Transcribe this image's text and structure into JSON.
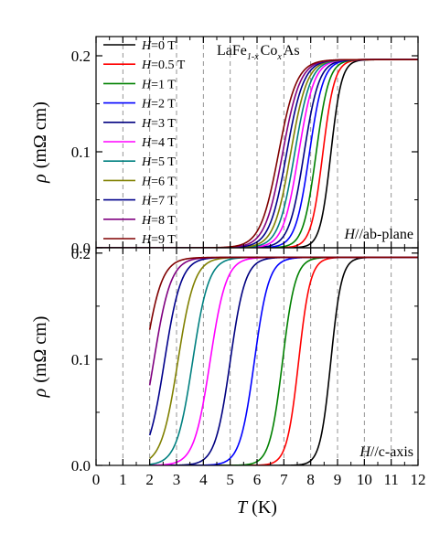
{
  "chart_data": [
    {
      "type": "line",
      "panel": "top",
      "compound": {
        "base": "LaFe",
        "sub1": "1-x",
        "mid": "Co",
        "sub2": "x",
        "tail": "As"
      },
      "annotation": {
        "italic": "H",
        "rest": "//ab-plane"
      },
      "ylabel": {
        "rho": "ρ",
        "unit": "(mΩ cm)"
      },
      "ylim": [
        0,
        0.22
      ],
      "yticks": [
        0.0,
        0.1,
        0.2
      ],
      "ytick_labels": [
        "0.0",
        "0.1",
        "0.2"
      ],
      "xlim": [
        0,
        12
      ],
      "grid": "vertical dashed lines at integer T",
      "rho_normal": 0.196,
      "legend": [
        {
          "italic": "H",
          "rest": "=0 T",
          "color": "#000000"
        },
        {
          "italic": "H",
          "rest": "=0.5 T",
          "color": "#ff0000"
        },
        {
          "italic": "H",
          "rest": "=1 T",
          "color": "#008000"
        },
        {
          "italic": "H",
          "rest": "=2 T",
          "color": "#0000ff"
        },
        {
          "italic": "H",
          "rest": "=3 T",
          "color": "#000080"
        },
        {
          "italic": "H",
          "rest": "=4 T",
          "color": "#ff00ff"
        },
        {
          "italic": "H",
          "rest": "=5 T",
          "color": "#008080"
        },
        {
          "italic": "H",
          "rest": "=6 T",
          "color": "#808000"
        },
        {
          "italic": "H",
          "rest": "=7 T",
          "color": "#00008b"
        },
        {
          "italic": "H",
          "rest": "=8 T",
          "color": "#800080"
        },
        {
          "italic": "H",
          "rest": "=9 T",
          "color": "#800000"
        }
      ],
      "legend_position": "top-left",
      "series": [
        {
          "field_T": 0,
          "Tc_mid": 8.75,
          "width": 0.2,
          "color": "#000000"
        },
        {
          "field_T": 0.5,
          "Tc_mid": 8.45,
          "width": 0.22,
          "color": "#ff0000"
        },
        {
          "field_T": 1,
          "Tc_mid": 8.2,
          "width": 0.24,
          "color": "#008000"
        },
        {
          "field_T": 2,
          "Tc_mid": 7.95,
          "width": 0.26,
          "color": "#0000ff"
        },
        {
          "field_T": 3,
          "Tc_mid": 7.75,
          "width": 0.28,
          "color": "#000080"
        },
        {
          "field_T": 4,
          "Tc_mid": 7.55,
          "width": 0.29,
          "color": "#ff00ff"
        },
        {
          "field_T": 5,
          "Tc_mid": 7.4,
          "width": 0.3,
          "color": "#008080"
        },
        {
          "field_T": 6,
          "Tc_mid": 7.25,
          "width": 0.31,
          "color": "#808000"
        },
        {
          "field_T": 7,
          "Tc_mid": 7.1,
          "width": 0.32,
          "color": "#00008b"
        },
        {
          "field_T": 8,
          "Tc_mid": 6.95,
          "width": 0.33,
          "color": "#800080"
        },
        {
          "field_T": 9,
          "Tc_mid": 6.8,
          "width": 0.34,
          "color": "#800000"
        }
      ]
    },
    {
      "type": "line",
      "panel": "bottom",
      "annotation": {
        "italic": "H",
        "rest": "//c-axis"
      },
      "ylabel": {
        "rho": "ρ",
        "unit": "(mΩ cm)"
      },
      "ylim": [
        0,
        0.205
      ],
      "yticks": [
        0.0,
        0.1,
        0.2
      ],
      "ytick_labels": [
        "0.0",
        "0.1",
        "0.2"
      ],
      "xlim": [
        0,
        12
      ],
      "xticks": [
        0,
        1,
        2,
        3,
        4,
        5,
        6,
        7,
        8,
        9,
        10,
        11,
        12
      ],
      "xtick_labels": [
        "0",
        "1",
        "2",
        "3",
        "4",
        "5",
        "6",
        "7",
        "8",
        "9",
        "10",
        "11",
        "12"
      ],
      "xlabel": {
        "italic": "T",
        "rest": " (K)"
      },
      "grid": "vertical dashed lines at integer T",
      "rho_normal": 0.196,
      "series": [
        {
          "field_T": 0,
          "Tc_mid": 8.75,
          "width": 0.2,
          "color": "#000000"
        },
        {
          "field_T": 0.5,
          "Tc_mid": 7.55,
          "width": 0.22,
          "color": "#ff0000"
        },
        {
          "field_T": 1,
          "Tc_mid": 6.95,
          "width": 0.24,
          "color": "#008000"
        },
        {
          "field_T": 2,
          "Tc_mid": 5.9,
          "width": 0.27,
          "color": "#0000ff"
        },
        {
          "field_T": 3,
          "Tc_mid": 5.0,
          "width": 0.28,
          "color": "#000080"
        },
        {
          "field_T": 4,
          "Tc_mid": 4.25,
          "width": 0.3,
          "color": "#ff00ff"
        },
        {
          "field_T": 5,
          "Tc_mid": 3.6,
          "width": 0.3,
          "color": "#008080"
        },
        {
          "field_T": 6,
          "Tc_mid": 3.05,
          "width": 0.31,
          "color": "#808000"
        },
        {
          "field_T": 7,
          "Tc_mid": 2.55,
          "width": 0.31,
          "color": "#00008b"
        },
        {
          "field_T": 8,
          "Tc_mid": 2.15,
          "width": 0.32,
          "color": "#800080"
        },
        {
          "field_T": 9,
          "Tc_mid": 1.8,
          "width": 0.32,
          "color": "#800000"
        }
      ],
      "data_starts_at_T": 2.0
    }
  ]
}
